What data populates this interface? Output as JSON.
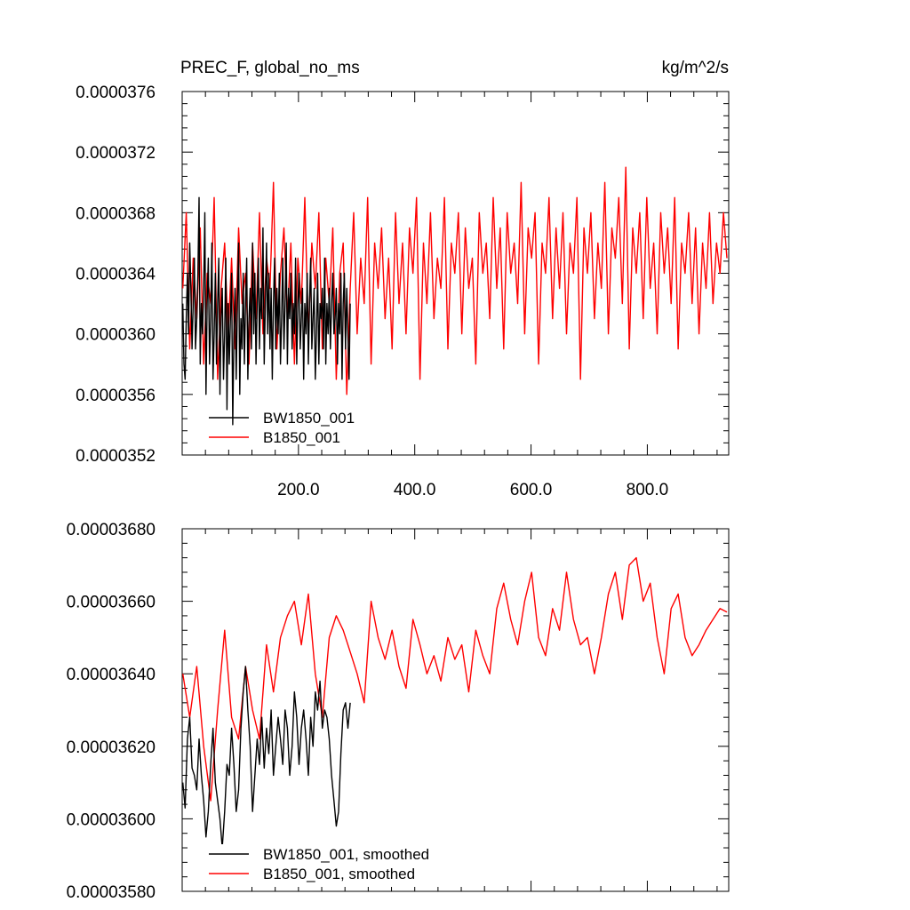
{
  "chart_data": [
    {
      "type": "line",
      "title": "PREC_F, global_no_ms",
      "units_label": "kg/m^2/s",
      "xlim": [
        0,
        940
      ],
      "ylim": [
        3.52e-05,
        3.76e-05
      ],
      "yticks": [
        "0.0000376",
        "0.0000372",
        "0.0000368",
        "0.0000364",
        "0.0000360",
        "0.0000356",
        "0.0000352"
      ],
      "xticks": [
        "200.0",
        "400.0",
        "600.0",
        "800.0"
      ],
      "grid": false,
      "legend_position": "bottom-left",
      "series": [
        {
          "name": "BW1850_001",
          "color": "#000000",
          "x": [
            1,
            3,
            5,
            7,
            9,
            11,
            13,
            15,
            17,
            19,
            21,
            23,
            25,
            27,
            29,
            31,
            33,
            35,
            37,
            39,
            41,
            43,
            45,
            47,
            49,
            51,
            53,
            55,
            57,
            59,
            61,
            63,
            65,
            67,
            69,
            71,
            73,
            75,
            77,
            79,
            81,
            83,
            85,
            87,
            89,
            91,
            93,
            95,
            97,
            99,
            101,
            103,
            105,
            107,
            109,
            111,
            113,
            115,
            117,
            119,
            121,
            123,
            125,
            127,
            129,
            131,
            133,
            135,
            137,
            139,
            141,
            143,
            145,
            147,
            149,
            151,
            153,
            155,
            157,
            159,
            161,
            163,
            165,
            167,
            169,
            171,
            173,
            175,
            177,
            179,
            181,
            183,
            185,
            187,
            189,
            191,
            193,
            195,
            197,
            199,
            201,
            203,
            205,
            207,
            209,
            211,
            213,
            215,
            217,
            219,
            221,
            223,
            225,
            227,
            229,
            231,
            233,
            235,
            237,
            239,
            241,
            243,
            245,
            247,
            249,
            251,
            253,
            255,
            257,
            259,
            261,
            263,
            265,
            267,
            269,
            271,
            273,
            275,
            277,
            279,
            281,
            283,
            285,
            287,
            289
          ],
          "y": [
            3.62e-05,
            3.58e-05,
            3.57e-05,
            3.61e-05,
            3.64e-05,
            3.6e-05,
            3.66e-05,
            3.63e-05,
            3.59e-05,
            3.62e-05,
            3.65e-05,
            3.59e-05,
            3.61e-05,
            3.64e-05,
            3.69e-05,
            3.58e-05,
            3.62e-05,
            3.6e-05,
            3.63e-05,
            3.68e-05,
            3.56e-05,
            3.62e-05,
            3.65e-05,
            3.58e-05,
            3.61e-05,
            3.66e-05,
            3.57e-05,
            3.6e-05,
            3.64e-05,
            3.58e-05,
            3.62e-05,
            3.65e-05,
            3.56e-05,
            3.61e-05,
            3.63e-05,
            3.57e-05,
            3.6e-05,
            3.65e-05,
            3.55e-05,
            3.62e-05,
            3.58e-05,
            3.61e-05,
            3.64e-05,
            3.54e-05,
            3.6e-05,
            3.63e-05,
            3.57e-05,
            3.62e-05,
            3.66e-05,
            3.56e-05,
            3.61e-05,
            3.59e-05,
            3.64e-05,
            3.58e-05,
            3.62e-05,
            3.65e-05,
            3.57e-05,
            3.61e-05,
            3.63e-05,
            3.59e-05,
            3.66e-05,
            3.6e-05,
            3.64e-05,
            3.58e-05,
            3.62e-05,
            3.65e-05,
            3.59e-05,
            3.63e-05,
            3.61e-05,
            3.67e-05,
            3.58e-05,
            3.62e-05,
            3.66e-05,
            3.6e-05,
            3.64e-05,
            3.59e-05,
            3.63e-05,
            3.57e-05,
            3.62e-05,
            3.65e-05,
            3.59e-05,
            3.63e-05,
            3.6e-05,
            3.64e-05,
            3.58e-05,
            3.61e-05,
            3.65e-05,
            3.59e-05,
            3.62e-05,
            3.66e-05,
            3.58e-05,
            3.63e-05,
            3.61e-05,
            3.64e-05,
            3.59e-05,
            3.62e-05,
            3.6e-05,
            3.65e-05,
            3.58e-05,
            3.62e-05,
            3.64e-05,
            3.59e-05,
            3.61e-05,
            3.63e-05,
            3.57e-05,
            3.62e-05,
            3.6e-05,
            3.64e-05,
            3.58e-05,
            3.62e-05,
            3.65e-05,
            3.59e-05,
            3.61e-05,
            3.63e-05,
            3.57e-05,
            3.6e-05,
            3.64e-05,
            3.58e-05,
            3.62e-05,
            3.61e-05,
            3.63e-05,
            3.59e-05,
            3.65e-05,
            3.58e-05,
            3.62e-05,
            3.6e-05,
            3.63e-05,
            3.59e-05,
            3.62e-05,
            3.64e-05,
            3.6e-05,
            3.61e-05,
            3.63e-05,
            3.58e-05,
            3.62e-05,
            3.6e-05,
            3.64e-05,
            3.57e-05,
            3.62e-05,
            3.64e-05,
            3.59e-05,
            3.63e-05,
            3.6e-05,
            3.57e-05,
            3.62e-05
          ]
        },
        {
          "name": "B1850_001",
          "color": "#ff0000",
          "x": [
            1,
            7,
            13,
            19,
            25,
            31,
            37,
            43,
            49,
            55,
            61,
            67,
            73,
            79,
            85,
            91,
            97,
            103,
            109,
            115,
            121,
            127,
            133,
            139,
            145,
            151,
            157,
            163,
            169,
            175,
            181,
            187,
            193,
            199,
            205,
            211,
            217,
            223,
            229,
            235,
            241,
            247,
            253,
            259,
            265,
            271,
            277,
            283,
            289,
            295,
            301,
            307,
            313,
            319,
            325,
            331,
            337,
            343,
            349,
            355,
            361,
            367,
            373,
            379,
            385,
            391,
            397,
            403,
            409,
            415,
            421,
            427,
            433,
            439,
            445,
            451,
            457,
            463,
            469,
            475,
            481,
            487,
            493,
            499,
            505,
            511,
            517,
            523,
            529,
            535,
            541,
            547,
            553,
            559,
            565,
            571,
            577,
            583,
            589,
            595,
            601,
            607,
            613,
            619,
            625,
            631,
            637,
            643,
            649,
            655,
            661,
            667,
            673,
            679,
            685,
            691,
            697,
            703,
            709,
            715,
            721,
            727,
            733,
            739,
            745,
            751,
            757,
            763,
            769,
            775,
            781,
            787,
            793,
            799,
            805,
            811,
            817,
            823,
            829,
            835,
            841,
            847,
            853,
            859,
            865,
            871,
            877,
            883,
            889,
            895,
            901,
            907,
            913,
            919,
            925,
            931,
            937
          ],
          "y": [
            3.63e-05,
            3.68e-05,
            3.59e-05,
            3.65e-05,
            3.61e-05,
            3.67e-05,
            3.58e-05,
            3.64e-05,
            3.62e-05,
            3.69e-05,
            3.57e-05,
            3.63e-05,
            3.66e-05,
            3.6e-05,
            3.65e-05,
            3.59e-05,
            3.67e-05,
            3.62e-05,
            3.64e-05,
            3.58e-05,
            3.66e-05,
            3.61e-05,
            3.68e-05,
            3.6e-05,
            3.65e-05,
            3.63e-05,
            3.7e-05,
            3.59e-05,
            3.64e-05,
            3.67e-05,
            3.61e-05,
            3.66e-05,
            3.58e-05,
            3.65e-05,
            3.62e-05,
            3.69e-05,
            3.6e-05,
            3.66e-05,
            3.63e-05,
            3.68e-05,
            3.59e-05,
            3.65e-05,
            3.62e-05,
            3.67e-05,
            3.57e-05,
            3.64e-05,
            3.66e-05,
            3.56e-05,
            3.63e-05,
            3.68e-05,
            3.6e-05,
            3.65e-05,
            3.62e-05,
            3.69e-05,
            3.58e-05,
            3.66e-05,
            3.63e-05,
            3.67e-05,
            3.61e-05,
            3.65e-05,
            3.59e-05,
            3.68e-05,
            3.62e-05,
            3.66e-05,
            3.6e-05,
            3.67e-05,
            3.64e-05,
            3.69e-05,
            3.57e-05,
            3.66e-05,
            3.62e-05,
            3.68e-05,
            3.61e-05,
            3.65e-05,
            3.63e-05,
            3.69e-05,
            3.59e-05,
            3.66e-05,
            3.64e-05,
            3.68e-05,
            3.6e-05,
            3.67e-05,
            3.63e-05,
            3.65e-05,
            3.58e-05,
            3.68e-05,
            3.64e-05,
            3.66e-05,
            3.61e-05,
            3.69e-05,
            3.63e-05,
            3.67e-05,
            3.59e-05,
            3.68e-05,
            3.64e-05,
            3.66e-05,
            3.62e-05,
            3.7e-05,
            3.6e-05,
            3.67e-05,
            3.65e-05,
            3.68e-05,
            3.58e-05,
            3.66e-05,
            3.64e-05,
            3.69e-05,
            3.61e-05,
            3.67e-05,
            3.63e-05,
            3.68e-05,
            3.6e-05,
            3.66e-05,
            3.64e-05,
            3.69e-05,
            3.57e-05,
            3.67e-05,
            3.64e-05,
            3.68e-05,
            3.61e-05,
            3.66e-05,
            3.63e-05,
            3.7e-05,
            3.6e-05,
            3.67e-05,
            3.65e-05,
            3.69e-05,
            3.62e-05,
            3.71e-05,
            3.59e-05,
            3.67e-05,
            3.64e-05,
            3.68e-05,
            3.61e-05,
            3.69e-05,
            3.63e-05,
            3.66e-05,
            3.6e-05,
            3.68e-05,
            3.64e-05,
            3.67e-05,
            3.62e-05,
            3.69e-05,
            3.59e-05,
            3.66e-05,
            3.64e-05,
            3.68e-05,
            3.62e-05,
            3.67e-05,
            3.6e-05,
            3.66e-05,
            3.63e-05,
            3.68e-05,
            3.62e-05,
            3.66e-05,
            3.64e-05,
            3.68e-05,
            3.65e-05
          ]
        }
      ]
    },
    {
      "type": "line",
      "xlim": [
        0,
        940
      ],
      "ylim": [
        3.58e-05,
        3.68e-05
      ],
      "yticks": [
        "0.00003680",
        "0.00003660",
        "0.00003640",
        "0.00003620",
        "0.00003600",
        "0.00003580"
      ],
      "grid": false,
      "legend_position": "bottom-left",
      "series": [
        {
          "name": "BW1850_001, smoothed",
          "color": "#000000",
          "x": [
            1,
            5,
            9,
            13,
            17,
            21,
            25,
            29,
            33,
            37,
            41,
            45,
            49,
            53,
            57,
            61,
            65,
            69,
            73,
            77,
            81,
            85,
            89,
            93,
            97,
            101,
            105,
            109,
            113,
            117,
            121,
            125,
            129,
            133,
            137,
            141,
            145,
            149,
            153,
            157,
            161,
            165,
            169,
            173,
            177,
            181,
            185,
            189,
            193,
            197,
            201,
            205,
            209,
            213,
            217,
            221,
            225,
            229,
            233,
            237,
            241,
            245,
            249,
            253,
            257,
            261,
            265,
            269,
            273,
            277,
            281,
            285,
            289
          ],
          "y": [
            3.61e-05,
            3.603e-05,
            3.622e-05,
            3.628e-05,
            3.614e-05,
            3.612e-05,
            3.608e-05,
            3.622e-05,
            3.612e-05,
            3.605e-05,
            3.595e-05,
            3.602e-05,
            3.615e-05,
            3.625e-05,
            3.61e-05,
            3.605e-05,
            3.6e-05,
            3.592e-05,
            3.602e-05,
            3.615e-05,
            3.612e-05,
            3.625e-05,
            3.615e-05,
            3.602e-05,
            3.608e-05,
            3.625e-05,
            3.635e-05,
            3.642e-05,
            3.63e-05,
            3.62e-05,
            3.602e-05,
            3.612e-05,
            3.622e-05,
            3.615e-05,
            3.628e-05,
            3.614e-05,
            3.625e-05,
            3.618e-05,
            3.63e-05,
            3.612e-05,
            3.62e-05,
            3.628e-05,
            3.622e-05,
            3.615e-05,
            3.63e-05,
            3.625e-05,
            3.612e-05,
            3.62e-05,
            3.635e-05,
            3.628e-05,
            3.615e-05,
            3.625e-05,
            3.63e-05,
            3.622e-05,
            3.612e-05,
            3.628e-05,
            3.62e-05,
            3.635e-05,
            3.63e-05,
            3.638e-05,
            3.625e-05,
            3.63e-05,
            3.628e-05,
            3.622e-05,
            3.612e-05,
            3.605e-05,
            3.598e-05,
            3.602e-05,
            3.618e-05,
            3.63e-05,
            3.632e-05,
            3.625e-05,
            3.632e-05
          ]
        },
        {
          "name": "B1850_001, smoothed",
          "color": "#ff0000",
          "x": [
            1,
            13,
            25,
            37,
            49,
            61,
            73,
            85,
            97,
            109,
            121,
            133,
            145,
            157,
            169,
            181,
            193,
            205,
            217,
            229,
            241,
            253,
            265,
            277,
            289,
            301,
            313,
            325,
            337,
            349,
            361,
            373,
            385,
            397,
            409,
            421,
            433,
            445,
            457,
            469,
            481,
            493,
            505,
            517,
            529,
            541,
            553,
            565,
            577,
            589,
            601,
            613,
            625,
            637,
            649,
            661,
            673,
            685,
            697,
            709,
            721,
            733,
            745,
            757,
            769,
            781,
            793,
            805,
            817,
            829,
            841,
            853,
            865,
            877,
            889,
            901,
            913,
            925,
            937
          ],
          "y": [
            3.64e-05,
            3.628e-05,
            3.642e-05,
            3.62e-05,
            3.605e-05,
            3.63e-05,
            3.652e-05,
            3.628e-05,
            3.622e-05,
            3.642e-05,
            3.63e-05,
            3.622e-05,
            3.648e-05,
            3.635e-05,
            3.65e-05,
            3.656e-05,
            3.66e-05,
            3.648e-05,
            3.662e-05,
            3.64e-05,
            3.628e-05,
            3.65e-05,
            3.656e-05,
            3.652e-05,
            3.646e-05,
            3.64e-05,
            3.632e-05,
            3.66e-05,
            3.65e-05,
            3.644e-05,
            3.652e-05,
            3.642e-05,
            3.636e-05,
            3.655e-05,
            3.648e-05,
            3.64e-05,
            3.645e-05,
            3.638e-05,
            3.65e-05,
            3.644e-05,
            3.648e-05,
            3.635e-05,
            3.652e-05,
            3.645e-05,
            3.64e-05,
            3.658e-05,
            3.665e-05,
            3.655e-05,
            3.648e-05,
            3.66e-05,
            3.668e-05,
            3.65e-05,
            3.645e-05,
            3.658e-05,
            3.652e-05,
            3.668e-05,
            3.655e-05,
            3.648e-05,
            3.65e-05,
            3.64e-05,
            3.65e-05,
            3.662e-05,
            3.668e-05,
            3.655e-05,
            3.67e-05,
            3.672e-05,
            3.66e-05,
            3.665e-05,
            3.65e-05,
            3.64e-05,
            3.658e-05,
            3.662e-05,
            3.65e-05,
            3.645e-05,
            3.648e-05,
            3.652e-05,
            3.655e-05,
            3.658e-05,
            3.657e-05
          ]
        }
      ]
    }
  ]
}
